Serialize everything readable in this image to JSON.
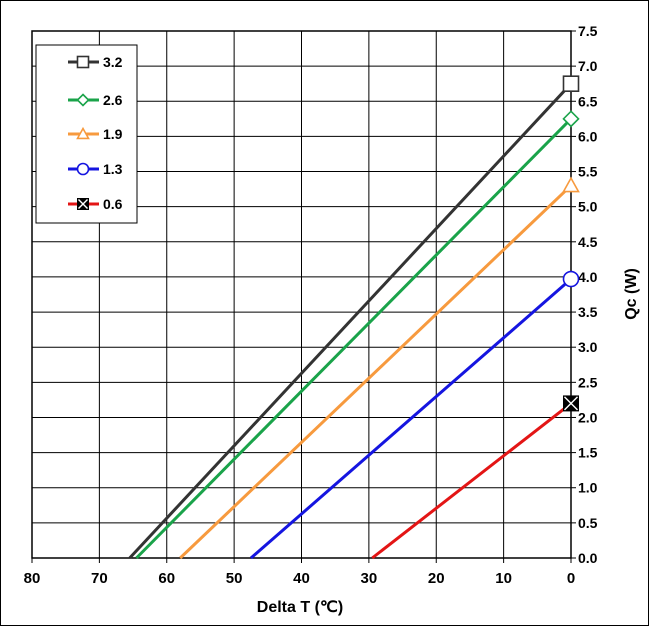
{
  "chart_data": {
    "type": "line",
    "xlabel": "Delta T (℃)",
    "ylabel": "Qc (W)",
    "xlim": [
      80,
      0
    ],
    "ylim": [
      0,
      7.5
    ],
    "x_axis_reversed": true,
    "y_axis_side": "right",
    "grid": true,
    "legend_position": "top-left",
    "x_ticks": [
      "80",
      "70",
      "60",
      "50",
      "40",
      "30",
      "20",
      "10",
      "0"
    ],
    "y_ticks": [
      "0.0",
      "0.5",
      "1.0",
      "1.5",
      "2.0",
      "2.5",
      "3.0",
      "3.5",
      "4.0",
      "4.5",
      "5.0",
      "5.5",
      "6.0",
      "6.5",
      "7.0",
      "7.5"
    ],
    "series": [
      {
        "name": "3.2",
        "color": "#333333",
        "marker": "square",
        "x": [
          65.5,
          0
        ],
        "y": [
          0,
          6.75
        ]
      },
      {
        "name": "2.6",
        "color": "#1aa34a",
        "marker": "diamond",
        "x": [
          64.5,
          0
        ],
        "y": [
          0,
          6.25
        ]
      },
      {
        "name": "1.9",
        "color": "#f79a3e",
        "marker": "triangle",
        "x": [
          58,
          0
        ],
        "y": [
          0,
          5.3
        ]
      },
      {
        "name": "1.3",
        "color": "#1515e0",
        "marker": "circle",
        "x": [
          47.5,
          0
        ],
        "y": [
          0,
          3.97
        ]
      },
      {
        "name": "0.6",
        "color": "#e31515",
        "marker": "square-x",
        "x": [
          29.5,
          0
        ],
        "y": [
          0,
          2.2
        ]
      }
    ]
  }
}
